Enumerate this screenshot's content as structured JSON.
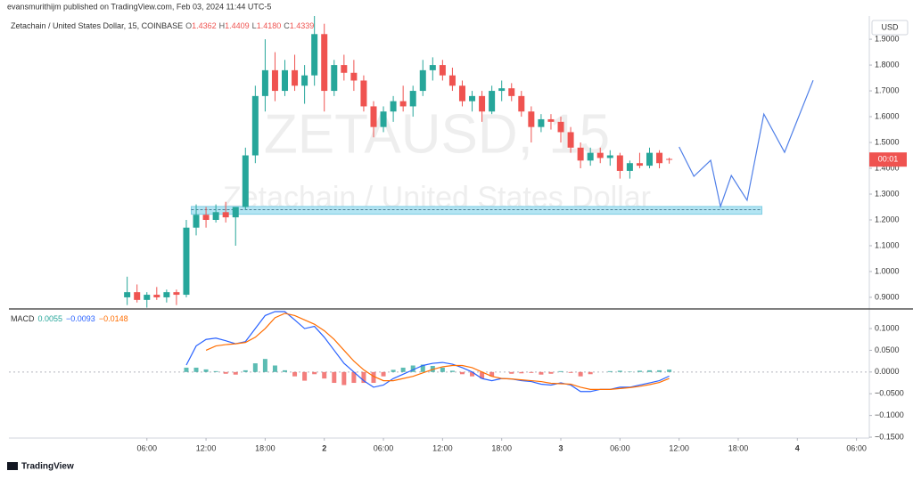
{
  "header": "evansmurithijm published on TradingView.com, Feb 03, 2024 11:44 UTC-5",
  "footer": "TradingView",
  "chart_data": [
    {
      "type": "candlestick",
      "title": "Zetachain / United States Dollar, 15, COINBASE",
      "ohlc_legend": [
        {
          "label": "O",
          "value": "1.4362"
        },
        {
          "label": "H",
          "value": "1.4409"
        },
        {
          "label": "L",
          "value": "1.4180"
        },
        {
          "label": "C",
          "value": "1.4339"
        }
      ],
      "watermark": [
        "ZETAUSD, 15",
        "Zetachain / United States Dollar"
      ],
      "currency": "USD",
      "countdown": "00:01",
      "up_color": "#26a69a",
      "down_color": "#ef5350",
      "x": [
        4,
        5,
        6,
        7,
        8,
        9,
        10,
        11,
        12,
        13,
        14,
        15,
        16,
        17,
        18,
        19,
        20,
        21,
        22,
        23,
        24,
        25,
        26,
        27,
        28,
        29,
        30,
        31,
        32,
        33,
        34,
        35,
        36,
        37,
        38,
        39,
        40,
        41,
        42,
        43,
        44,
        45,
        46,
        47,
        48,
        49,
        50,
        51,
        52,
        53,
        54,
        55,
        56,
        57,
        58,
        59
      ],
      "open": [
        0.9,
        0.92,
        0.89,
        0.91,
        0.9,
        0.92,
        0.91,
        1.17,
        1.22,
        1.2,
        1.23,
        1.21,
        1.25,
        1.45,
        1.68,
        1.78,
        1.7,
        1.78,
        1.72,
        1.76,
        1.92,
        1.7,
        1.8,
        1.77,
        1.74,
        1.64,
        1.56,
        1.62,
        1.66,
        1.64,
        1.7,
        1.78,
        1.8,
        1.76,
        1.72,
        1.66,
        1.68,
        1.62,
        1.7,
        1.71,
        1.68,
        1.62,
        1.56,
        1.59,
        1.58,
        1.54,
        1.48,
        1.43,
        1.46,
        1.44,
        1.45,
        1.39,
        1.42,
        1.41,
        1.46,
        1.4362
      ],
      "high": [
        0.98,
        0.95,
        0.92,
        0.94,
        0.93,
        0.93,
        1.2,
        1.26,
        1.25,
        1.26,
        1.27,
        1.24,
        1.48,
        1.72,
        1.9,
        1.85,
        1.82,
        1.84,
        1.8,
        1.99,
        1.96,
        1.82,
        1.84,
        1.82,
        1.76,
        1.66,
        1.64,
        1.68,
        1.72,
        1.72,
        1.82,
        1.83,
        1.82,
        1.79,
        1.74,
        1.7,
        1.7,
        1.72,
        1.74,
        1.73,
        1.7,
        1.64,
        1.61,
        1.61,
        1.6,
        1.56,
        1.5,
        1.48,
        1.48,
        1.47,
        1.46,
        1.43,
        1.46,
        1.48,
        1.47,
        1.4409
      ],
      "low": [
        0.87,
        0.88,
        0.86,
        0.89,
        0.88,
        0.87,
        0.9,
        1.14,
        1.17,
        1.19,
        1.19,
        1.1,
        1.24,
        1.42,
        1.62,
        1.66,
        1.68,
        1.7,
        1.65,
        1.72,
        1.62,
        1.68,
        1.74,
        1.7,
        1.62,
        1.52,
        1.54,
        1.58,
        1.62,
        1.6,
        1.68,
        1.74,
        1.74,
        1.7,
        1.64,
        1.62,
        1.58,
        1.61,
        1.66,
        1.66,
        1.6,
        1.5,
        1.54,
        1.55,
        1.5,
        1.46,
        1.4,
        1.41,
        1.42,
        1.41,
        1.36,
        1.36,
        1.4,
        1.4,
        1.4,
        1.418
      ],
      "close": [
        0.92,
        0.89,
        0.91,
        0.9,
        0.92,
        0.91,
        1.17,
        1.22,
        1.2,
        1.23,
        1.21,
        1.25,
        1.45,
        1.68,
        1.78,
        1.7,
        1.78,
        1.72,
        1.76,
        1.92,
        1.7,
        1.8,
        1.77,
        1.74,
        1.64,
        1.56,
        1.62,
        1.66,
        1.64,
        1.7,
        1.78,
        1.8,
        1.76,
        1.72,
        1.66,
        1.68,
        1.62,
        1.7,
        1.71,
        1.68,
        1.62,
        1.56,
        1.59,
        1.58,
        1.54,
        1.48,
        1.43,
        1.46,
        1.44,
        1.45,
        1.39,
        1.42,
        1.41,
        1.46,
        1.42,
        1.4339
      ],
      "zone": {
        "x": [
          10.5,
          68.4
        ],
        "y": [
          1.222,
          1.252
        ],
        "level": 1.24,
        "color": "#b3e5f3"
      },
      "projection": {
        "color": "#4f7fe8",
        "x": [
          60.0,
          61.5,
          63.2,
          64.2,
          65.3,
          66.9,
          68.6,
          70.7,
          73.6
        ],
        "y": [
          1.483,
          1.369,
          1.431,
          1.252,
          1.372,
          1.276,
          1.61,
          1.462,
          1.741
        ]
      },
      "xlim": [
        -8,
        79.3
      ],
      "ylim": [
        0.855,
        1.99
      ],
      "yticks": [
        {
          "value": 0.9,
          "label": "0.9000"
        },
        {
          "value": 1.0,
          "label": "1.0000"
        },
        {
          "value": 1.1,
          "label": "1.1000"
        },
        {
          "value": 1.2,
          "label": "1.2000"
        },
        {
          "value": 1.3,
          "label": "1.3000"
        },
        {
          "value": 1.4,
          "label": "1.4000"
        },
        {
          "value": 1.5,
          "label": "1.5000"
        },
        {
          "value": 1.6,
          "label": "1.6000"
        },
        {
          "value": 1.7,
          "label": "1.7000"
        },
        {
          "value": 1.8,
          "label": "1.8000"
        },
        {
          "value": 1.9,
          "label": "1.9000"
        }
      ]
    },
    {
      "type": "macd",
      "title": "MACD",
      "legend_values": [
        {
          "value": "0.0055",
          "color": "#26a69a"
        },
        {
          "value": "−0.0093",
          "color": "#2962ff"
        },
        {
          "value": "−0.0148",
          "color": "#ff6d00"
        }
      ],
      "x": [
        10,
        11,
        12,
        13,
        14,
        15,
        16,
        17,
        18,
        19,
        20,
        21,
        22,
        23,
        24,
        25,
        26,
        27,
        28,
        29,
        30,
        31,
        32,
        33,
        34,
        35,
        36,
        37,
        38,
        39,
        40,
        41,
        42,
        43,
        44,
        45,
        46,
        47,
        48,
        49,
        50,
        51,
        52,
        53,
        54,
        55,
        56,
        57,
        58,
        59
      ],
      "histogram": {
        "up_color": "#26a69a",
        "down_color": "#ef5350",
        "values": [
          0.01,
          0.01,
          0.006,
          0.002,
          -0.004,
          -0.006,
          0.004,
          0.02,
          0.03,
          0.015,
          0.004,
          -0.01,
          -0.02,
          -0.005,
          -0.015,
          -0.025,
          -0.03,
          -0.025,
          -0.025,
          -0.025,
          -0.01,
          0.005,
          0.01,
          0.015,
          0.017,
          0.014,
          0.01,
          0.003,
          -0.005,
          -0.01,
          -0.015,
          -0.01,
          0.0,
          -0.004,
          -0.003,
          -0.002,
          -0.006,
          -0.004,
          0.002,
          -0.002,
          -0.01,
          -0.005,
          0.0,
          0.002,
          0.003,
          0.001,
          0.003,
          0.004,
          0.004,
          0.0055
        ]
      },
      "series": [
        {
          "color": "#2962ff",
          "values": [
            0.016,
            0.06,
            0.075,
            0.078,
            0.072,
            0.065,
            0.07,
            0.1,
            0.13,
            0.14,
            0.139,
            0.12,
            0.1,
            0.105,
            0.08,
            0.05,
            0.02,
            0.0,
            -0.02,
            -0.035,
            -0.03,
            -0.015,
            -0.005,
            0.005,
            0.015,
            0.02,
            0.022,
            0.018,
            0.01,
            0.0,
            -0.015,
            -0.02,
            -0.015,
            -0.016,
            -0.02,
            -0.022,
            -0.028,
            -0.03,
            -0.025,
            -0.03,
            -0.045,
            -0.045,
            -0.04,
            -0.04,
            -0.035,
            -0.035,
            -0.03,
            -0.025,
            -0.02,
            -0.0093
          ]
        },
        {
          "color": "#ff6d00",
          "values": [
            null,
            null,
            0.05,
            0.06,
            0.063,
            0.065,
            0.068,
            0.08,
            0.1,
            0.125,
            0.135,
            0.13,
            0.12,
            0.11,
            0.095,
            0.075,
            0.05,
            0.025,
            0.005,
            -0.01,
            -0.02,
            -0.02,
            -0.015,
            -0.01,
            -0.002,
            0.006,
            0.012,
            0.015,
            0.015,
            0.01,
            0.0,
            -0.01,
            -0.015,
            -0.016,
            -0.018,
            -0.02,
            -0.022,
            -0.026,
            -0.027,
            -0.028,
            -0.035,
            -0.04,
            -0.04,
            -0.04,
            -0.038,
            -0.036,
            -0.033,
            -0.029,
            -0.024,
            -0.0148
          ]
        }
      ],
      "xlim": [
        -8,
        79.3
      ],
      "ylim": [
        -0.152,
        0.139
      ],
      "xticks": [
        {
          "value": 6,
          "label": "06:00"
        },
        {
          "value": 12,
          "label": "12:00"
        },
        {
          "value": 18,
          "label": "18:00"
        },
        {
          "value": 24,
          "label": "2"
        },
        {
          "value": 30,
          "label": "06:00"
        },
        {
          "value": 36,
          "label": "12:00"
        },
        {
          "value": 42,
          "label": "18:00"
        },
        {
          "value": 48,
          "label": "3"
        },
        {
          "value": 54,
          "label": "06:00"
        },
        {
          "value": 60,
          "label": "12:00"
        },
        {
          "value": 66,
          "label": "18:00"
        },
        {
          "value": 72,
          "label": "4"
        },
        {
          "value": 78,
          "label": "06:00"
        }
      ],
      "yticks": [
        {
          "value": 0.1,
          "label": "0.1000"
        },
        {
          "value": 0.05,
          "label": "0.0500"
        },
        {
          "value": 0,
          "label": "0.0000"
        },
        {
          "value": -0.05,
          "label": "−0.0500"
        },
        {
          "value": -0.1,
          "label": "−0.1000"
        },
        {
          "value": -0.15,
          "label": "−0.1500"
        }
      ]
    }
  ]
}
